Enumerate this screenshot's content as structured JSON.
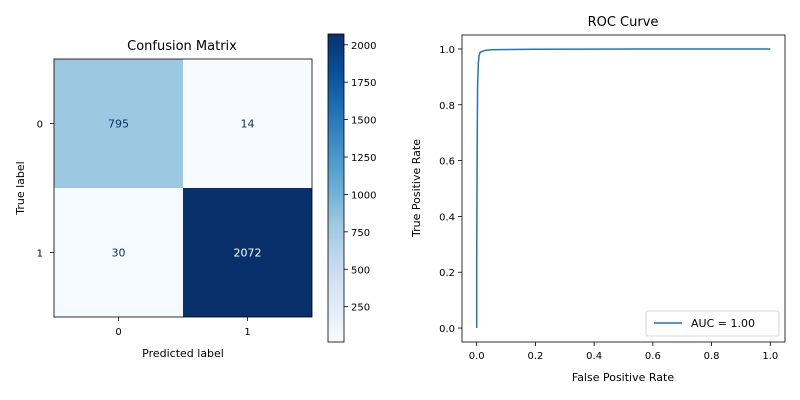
{
  "chart_data": [
    {
      "type": "heatmap",
      "title": "Confusion Matrix",
      "xlabel": "Predicted label",
      "ylabel": "True label",
      "x_categories": [
        "0",
        "1"
      ],
      "y_categories": [
        "0",
        "1"
      ],
      "values": [
        [
          795,
          14
        ],
        [
          30,
          2072
        ]
      ],
      "colormap": "Blues",
      "colorbar": {
        "min": 14,
        "max": 2072,
        "ticks": [
          250,
          500,
          750,
          1000,
          1250,
          1500,
          1750,
          2000
        ]
      }
    },
    {
      "type": "line",
      "title": "ROC Curve",
      "xlabel": "False Positive Rate",
      "ylabel": "True Positive Rate",
      "xlim": [
        -0.05,
        1.05
      ],
      "ylim": [
        -0.05,
        1.05
      ],
      "xticks": [
        "0.0",
        "0.2",
        "0.4",
        "0.6",
        "0.8",
        "1.0"
      ],
      "yticks": [
        "0.0",
        "0.2",
        "0.4",
        "0.6",
        "0.8",
        "1.0"
      ],
      "grid": false,
      "legend_position": "lower-right",
      "series": [
        {
          "name": "AUC = 1.00",
          "color": "#1f77b4",
          "x": [
            0.0,
            0.0,
            0.001,
            0.002,
            0.003,
            0.004,
            0.006,
            0.008,
            0.012,
            0.02,
            0.03,
            0.05,
            0.1,
            0.2,
            0.4,
            0.6,
            0.8,
            1.0
          ],
          "y": [
            0.0,
            0.25,
            0.5,
            0.72,
            0.87,
            0.9,
            0.95,
            0.975,
            0.988,
            0.992,
            0.995,
            0.997,
            0.998,
            0.999,
            0.9995,
            0.9998,
            0.9999,
            1.0
          ]
        }
      ]
    }
  ]
}
